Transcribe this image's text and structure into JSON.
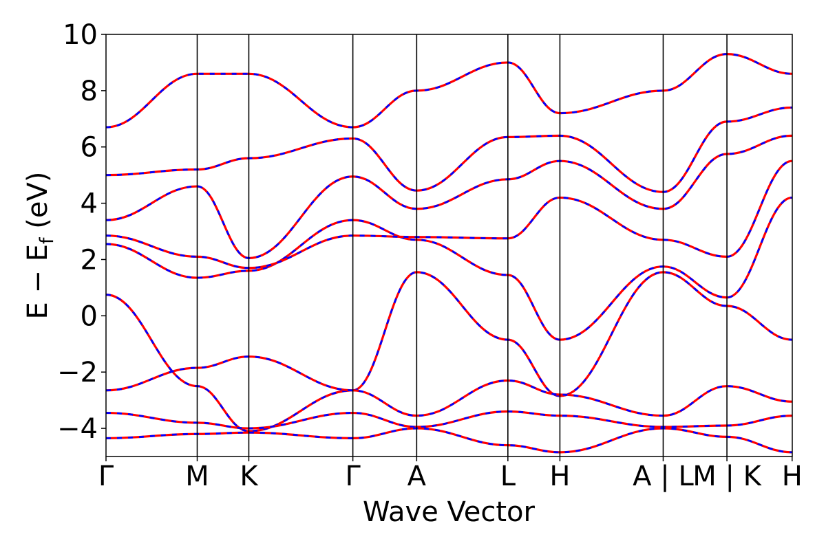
{
  "chart_data": {
    "type": "line",
    "title": "",
    "xlabel": "Wave Vector",
    "ylabel": "E − E",
    "ylabel_subscript": "f",
    "ylabel_unit": "(eV)",
    "ylim": [
      -5,
      10
    ],
    "yticks": [
      -4,
      -2,
      0,
      2,
      4,
      6,
      8,
      10
    ],
    "ytick_labels": [
      "−4",
      "−2",
      "0",
      "2",
      "4",
      "6",
      "8",
      "10"
    ],
    "xlim": [
      0,
      1
    ],
    "kpoint_positions": [
      0,
      0.1329,
      0.2081,
      0.3597,
      0.4527,
      0.5856,
      0.6614,
      0.8119,
      0.9048,
      0.9998
    ],
    "kpoint_labels": [
      "Γ",
      "M",
      "K",
      "Γ",
      "A",
      "L",
      "H",
      "A | L",
      "M | K",
      "H"
    ],
    "grid": false,
    "legend": "none",
    "colors": {
      "band_solid": "#ff0000",
      "band_dashed": "#0000ff",
      "frame": "#000000"
    },
    "series": [
      {
        "style": "dashed",
        "color": "#0000ff",
        "nodes": [
          [
            0,
            0.75
          ],
          [
            0.1329,
            -2.5
          ],
          [
            0.2081,
            -4.1
          ],
          [
            0.3597,
            -2.65
          ],
          [
            0.4527,
            1.55
          ],
          [
            0.5856,
            -0.85
          ],
          [
            0.6614,
            -2.85
          ],
          [
            0.8119,
            1.55
          ],
          [
            0.9048,
            0.35
          ],
          [
            0.9998,
            -0.85
          ]
        ]
      },
      {
        "style": "dashed",
        "color": "#0000ff",
        "nodes": [
          [
            0,
            2.55
          ],
          [
            0.1329,
            1.35
          ],
          [
            0.2081,
            1.6
          ],
          [
            0.3597,
            3.4
          ],
          [
            0.4527,
            2.7
          ],
          [
            0.5856,
            1.45
          ],
          [
            0.6614,
            -0.85
          ],
          [
            0.8119,
            1.75
          ],
          [
            0.9048,
            0.65
          ],
          [
            0.9998,
            4.2
          ]
        ]
      },
      {
        "style": "dashed",
        "color": "#0000ff",
        "nodes": [
          [
            0,
            2.85
          ],
          [
            0.1329,
            2.1
          ],
          [
            0.2081,
            1.7
          ],
          [
            0.3597,
            2.85
          ],
          [
            0.4527,
            2.8
          ],
          [
            0.5856,
            2.75
          ],
          [
            0.6614,
            4.2
          ],
          [
            0.8119,
            2.7
          ],
          [
            0.9048,
            2.1
          ],
          [
            0.9998,
            5.5
          ]
        ]
      },
      {
        "style": "dashed",
        "color": "#0000ff",
        "nodes": [
          [
            0,
            3.4
          ],
          [
            0.1329,
            4.6
          ],
          [
            0.2081,
            2.05
          ],
          [
            0.3597,
            4.95
          ],
          [
            0.4527,
            3.8
          ],
          [
            0.5856,
            4.85
          ],
          [
            0.6614,
            5.5
          ],
          [
            0.8119,
            3.8
          ],
          [
            0.9048,
            5.75
          ],
          [
            0.9998,
            6.4
          ]
        ]
      },
      {
        "style": "dashed",
        "color": "#0000ff",
        "nodes": [
          [
            0,
            5.0
          ],
          [
            0.1329,
            5.2
          ],
          [
            0.2081,
            5.6
          ],
          [
            0.3597,
            6.3
          ],
          [
            0.4527,
            4.45
          ],
          [
            0.5856,
            6.35
          ],
          [
            0.6614,
            6.4
          ],
          [
            0.8119,
            4.4
          ],
          [
            0.9048,
            6.9
          ],
          [
            0.9998,
            7.4
          ]
        ]
      },
      {
        "style": "dashed",
        "color": "#0000ff",
        "nodes": [
          [
            0,
            6.7
          ],
          [
            0.1329,
            8.6
          ],
          [
            0.2081,
            8.6
          ],
          [
            0.3597,
            6.7
          ],
          [
            0.4527,
            8.0
          ],
          [
            0.5856,
            9.0
          ],
          [
            0.6614,
            7.2
          ],
          [
            0.8119,
            8.0
          ],
          [
            0.9048,
            9.3
          ],
          [
            0.9998,
            8.6
          ]
        ]
      },
      {
        "style": "dashed",
        "color": "#0000ff",
        "nodes": [
          [
            0,
            -2.65
          ],
          [
            0.1329,
            -1.85
          ],
          [
            0.2081,
            -1.45
          ],
          [
            0.3597,
            -2.65
          ],
          [
            0.4527,
            -3.55
          ],
          [
            0.5856,
            -2.3
          ],
          [
            0.6614,
            -2.8
          ],
          [
            0.8119,
            -3.55
          ],
          [
            0.9048,
            -2.5
          ],
          [
            0.9998,
            -3.05
          ]
        ]
      },
      {
        "style": "dashed",
        "color": "#0000ff",
        "nodes": [
          [
            0,
            -3.45
          ],
          [
            0.1329,
            -3.8
          ],
          [
            0.2081,
            -4.0
          ],
          [
            0.3597,
            -3.45
          ],
          [
            0.4527,
            -3.95
          ],
          [
            0.5856,
            -3.4
          ],
          [
            0.6614,
            -3.55
          ],
          [
            0.8119,
            -3.95
          ],
          [
            0.9048,
            -3.9
          ],
          [
            0.9998,
            -3.55
          ]
        ]
      },
      {
        "style": "dashed",
        "color": "#0000ff",
        "nodes": [
          [
            0,
            -4.35
          ],
          [
            0.1329,
            -4.2
          ],
          [
            0.2081,
            -4.15
          ],
          [
            0.3597,
            -4.35
          ],
          [
            0.4527,
            -4.0
          ],
          [
            0.5856,
            -4.6
          ],
          [
            0.6614,
            -4.85
          ],
          [
            0.8119,
            -4.0
          ],
          [
            0.9048,
            -4.3
          ],
          [
            0.9998,
            -4.85
          ]
        ]
      }
    ]
  }
}
